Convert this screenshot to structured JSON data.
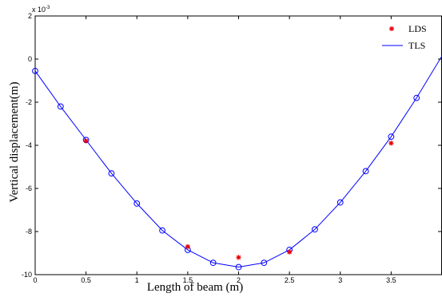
{
  "chart_data": {
    "type": "line",
    "title": "",
    "xlabel": "Length of beam (m)",
    "ylabel": "Vertical displacement(m)",
    "y_exponent_label": "x 10",
    "y_exponent_power": "-3",
    "xlim": [
      0,
      4
    ],
    "ylim": [
      -10,
      2
    ],
    "x_ticks": [
      0,
      0.5,
      1,
      1.5,
      2,
      2.5,
      3,
      3.5
    ],
    "x_tick_labels": [
      "0",
      "0.5",
      "1",
      "1.5",
      "2",
      "2.5",
      "3",
      "3.5"
    ],
    "y_ticks": [
      2,
      0,
      -2,
      -4,
      -6,
      -8,
      -10
    ],
    "y_tick_labels": [
      "2",
      "0",
      "-2",
      "-4",
      "-6",
      "-8",
      "-10"
    ],
    "grid": false,
    "legend_position": "top-right",
    "series": [
      {
        "name": "LDS",
        "marker": "asterisk",
        "color": "#e8000b",
        "x": [
          0.5,
          1.5,
          2.0,
          2.5,
          3.5
        ],
        "y": [
          -3.8,
          -8.7,
          -9.2,
          -8.95,
          -3.9
        ]
      },
      {
        "name": "TLS",
        "marker": "circle-line",
        "color": "#0000ff",
        "x": [
          0,
          0.25,
          0.5,
          0.75,
          1.0,
          1.25,
          1.5,
          1.75,
          2.0,
          2.25,
          2.5,
          2.75,
          3.0,
          3.25,
          3.5,
          3.75,
          4.0
        ],
        "y": [
          -0.55,
          -2.2,
          -3.75,
          -5.3,
          -6.7,
          -7.95,
          -8.85,
          -9.45,
          -9.65,
          -9.45,
          -8.85,
          -7.9,
          -6.65,
          -5.2,
          -3.6,
          -1.8,
          0.15
        ]
      }
    ]
  }
}
